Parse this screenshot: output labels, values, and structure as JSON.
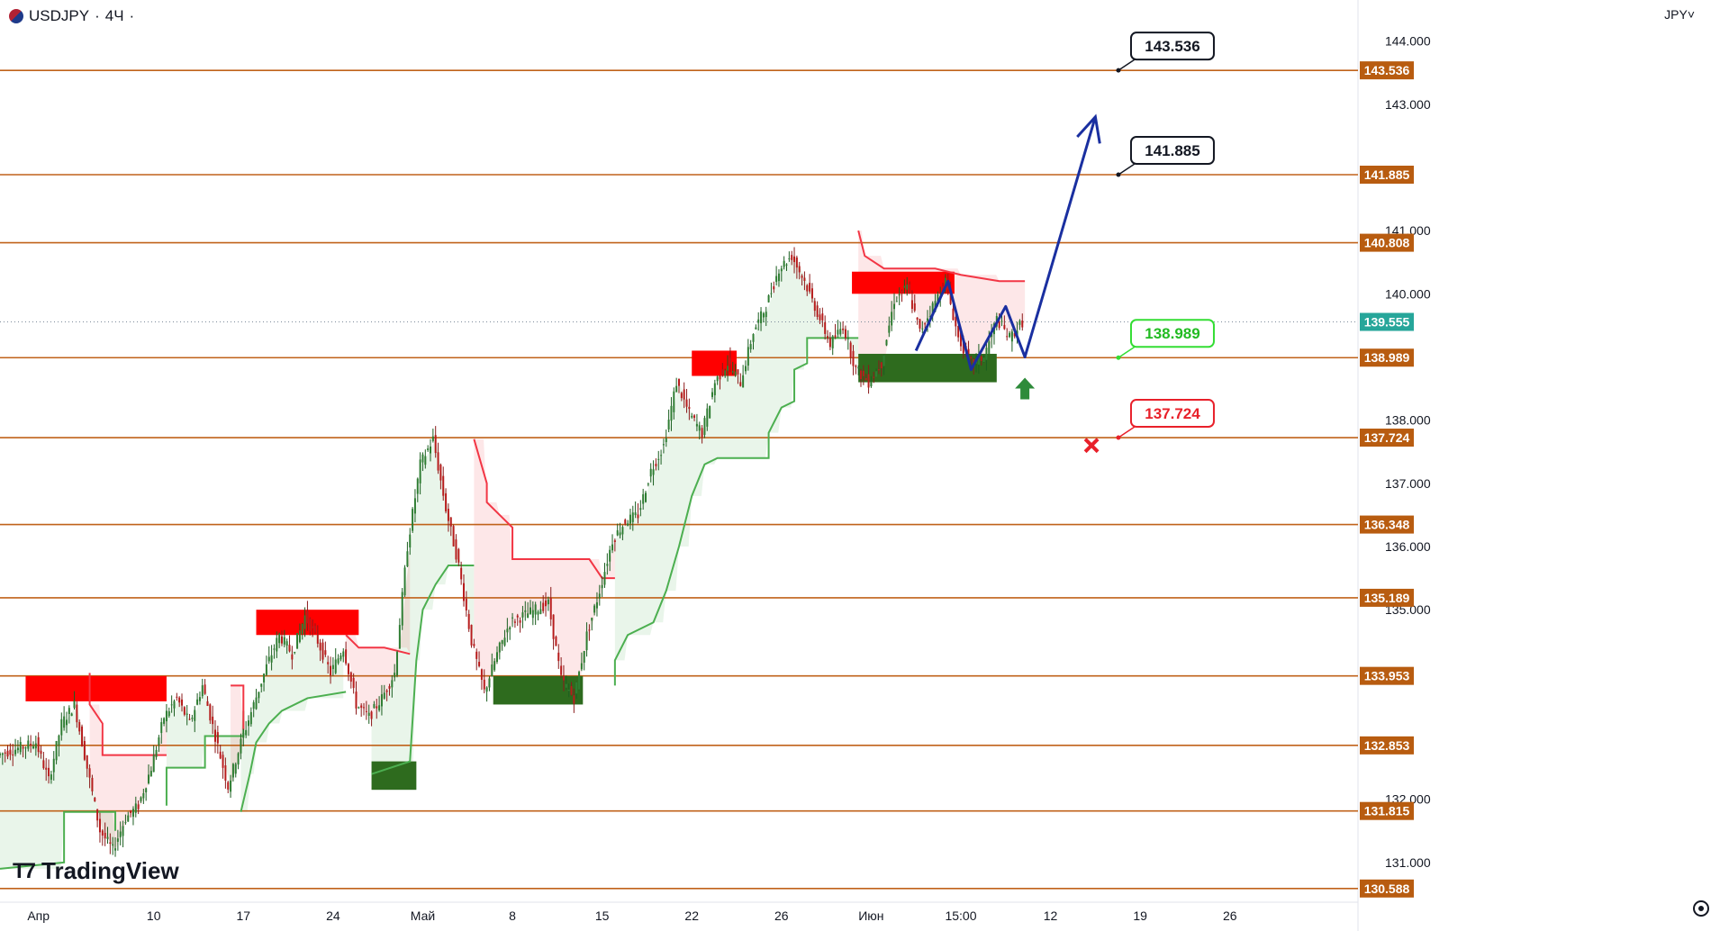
{
  "header": {
    "symbol": "USDJPY",
    "timeframe": "4Ч",
    "separator": "·"
  },
  "axis_currency": "JPY",
  "brand": "TradingView",
  "chart_data": {
    "type": "candlestick",
    "ylim": [
      130.4,
      144.45
    ],
    "y_ticks": [
      "144.000",
      "143.000",
      "141.000",
      "140.000",
      "138.000",
      "137.000",
      "136.000",
      "135.000",
      "132.000",
      "131.000"
    ],
    "y_tick_values": [
      144.0,
      143.0,
      141.0,
      140.0,
      138.0,
      137.0,
      136.0,
      135.0,
      132.0,
      131.0
    ],
    "x_ticks": [
      "Апр",
      "10",
      "17",
      "24",
      "Май",
      "8",
      "15",
      "22",
      "26",
      "Июн",
      "15:00",
      "12",
      "19",
      "26"
    ],
    "x_tick_values": [
      0,
      9,
      16,
      23,
      30,
      37,
      44,
      51,
      58,
      65,
      72,
      79,
      86,
      93
    ],
    "x_range": [
      -3,
      103
    ],
    "levels": [
      {
        "value": 143.536,
        "label": "143.536"
      },
      {
        "value": 141.885,
        "label": "141.885"
      },
      {
        "value": 140.808,
        "label": "140.808"
      },
      {
        "value": 138.989,
        "label": "138.989"
      },
      {
        "value": 137.724,
        "label": "137.724"
      },
      {
        "value": 136.348,
        "label": "136.348"
      },
      {
        "value": 135.189,
        "label": "135.189"
      },
      {
        "value": 133.953,
        "label": "133.953"
      },
      {
        "value": 132.853,
        "label": "132.853"
      },
      {
        "value": 131.815,
        "label": "131.815"
      },
      {
        "value": 130.588,
        "label": "130.588"
      }
    ],
    "current_price": {
      "value": 139.555,
      "label": "139.555"
    },
    "callouts": [
      {
        "label": "143.536",
        "value": 143.536,
        "style": "target"
      },
      {
        "label": "141.885",
        "value": 141.885,
        "style": "target"
      },
      {
        "label": "138.989",
        "value": 138.989,
        "style": "entry"
      },
      {
        "label": "137.724",
        "value": 137.724,
        "style": "stop"
      }
    ],
    "path": [
      [
        -3,
        132.7
      ],
      [
        0,
        132.9
      ],
      [
        1,
        132.3
      ],
      [
        2,
        133.2
      ],
      [
        3,
        133.5
      ],
      [
        4,
        132.5
      ],
      [
        5,
        131.5
      ],
      [
        6,
        131.2
      ],
      [
        7,
        131.7
      ],
      [
        8,
        131.9
      ],
      [
        9,
        132.5
      ],
      [
        10,
        133.3
      ],
      [
        11,
        133.6
      ],
      [
        12,
        133.2
      ],
      [
        13,
        133.8
      ],
      [
        14,
        133.0
      ],
      [
        15,
        132.2
      ],
      [
        16,
        132.9
      ],
      [
        17,
        133.5
      ],
      [
        18,
        134.1
      ],
      [
        19,
        134.6
      ],
      [
        20,
        134.3
      ],
      [
        21,
        134.9
      ],
      [
        22,
        134.5
      ],
      [
        23,
        134.0
      ],
      [
        24,
        134.4
      ],
      [
        25,
        133.5
      ],
      [
        26,
        133.3
      ],
      [
        27,
        133.6
      ],
      [
        28,
        134.0
      ],
      [
        29,
        136.0
      ],
      [
        30,
        137.3
      ],
      [
        31,
        137.7
      ],
      [
        32,
        136.6
      ],
      [
        33,
        135.7
      ],
      [
        34,
        134.5
      ],
      [
        35,
        133.7
      ],
      [
        36,
        134.3
      ],
      [
        37,
        134.8
      ],
      [
        38,
        134.9
      ],
      [
        39,
        135.0
      ],
      [
        40,
        135.1
      ],
      [
        41,
        133.9
      ],
      [
        42,
        133.6
      ],
      [
        43,
        134.6
      ],
      [
        44,
        135.3
      ],
      [
        45,
        136.1
      ],
      [
        46,
        136.4
      ],
      [
        47,
        136.5
      ],
      [
        48,
        137.2
      ],
      [
        49,
        137.6
      ],
      [
        50,
        138.6
      ],
      [
        51,
        138.1
      ],
      [
        52,
        137.8
      ],
      [
        53,
        138.6
      ],
      [
        54,
        138.9
      ],
      [
        55,
        138.6
      ],
      [
        56,
        139.4
      ],
      [
        57,
        139.8
      ],
      [
        58,
        140.4
      ],
      [
        59,
        140.6
      ],
      [
        60,
        140.2
      ],
      [
        61,
        139.7
      ],
      [
        62,
        139.2
      ],
      [
        63,
        139.5
      ],
      [
        64,
        138.8
      ],
      [
        65,
        138.6
      ],
      [
        66,
        138.9
      ],
      [
        67,
        139.9
      ],
      [
        68,
        140.1
      ],
      [
        69,
        139.4
      ],
      [
        70,
        139.8
      ],
      [
        71,
        140.2
      ],
      [
        72,
        139.3
      ],
      [
        73,
        138.9
      ],
      [
        74,
        139.0
      ],
      [
        75,
        139.6
      ],
      [
        76,
        139.3
      ],
      [
        77,
        139.55
      ]
    ],
    "trailing_stop": {
      "green": [
        [
          [
            -3,
            130.9
          ],
          [
            2,
            131.0
          ],
          [
            2,
            131.8
          ],
          [
            6,
            131.8
          ],
          [
            6,
            131.5
          ]
        ],
        [
          [
            10,
            131.9
          ],
          [
            10,
            132.5
          ],
          [
            13,
            132.5
          ],
          [
            13,
            133.0
          ],
          [
            16,
            133.0
          ],
          [
            16,
            133.4
          ]
        ],
        [
          [
            15.8,
            131.8
          ],
          [
            16.5,
            132.4
          ],
          [
            17,
            132.9
          ],
          [
            18,
            133.2
          ],
          [
            19,
            133.4
          ],
          [
            21,
            133.6
          ],
          [
            24,
            133.7
          ]
        ],
        [
          [
            26,
            132.4
          ],
          [
            29,
            132.6
          ],
          [
            29.5,
            134.2
          ],
          [
            30,
            135.0
          ],
          [
            31,
            135.4
          ],
          [
            32,
            135.7
          ],
          [
            34,
            135.7
          ]
        ],
        [
          [
            45,
            133.8
          ],
          [
            45,
            134.2
          ],
          [
            46,
            134.6
          ],
          [
            48,
            134.8
          ],
          [
            49,
            135.3
          ],
          [
            50,
            136.0
          ],
          [
            51,
            136.8
          ],
          [
            52,
            137.3
          ],
          [
            53,
            137.4
          ],
          [
            57,
            137.4
          ],
          [
            57,
            137.8
          ],
          [
            58,
            138.2
          ],
          [
            59,
            138.3
          ],
          [
            59,
            138.8
          ],
          [
            60,
            138.9
          ],
          [
            60,
            139.3
          ],
          [
            64,
            139.3
          ]
        ]
      ],
      "red": [
        [
          [
            4,
            134.0
          ],
          [
            4,
            133.5
          ],
          [
            5,
            133.2
          ],
          [
            5,
            132.7
          ],
          [
            10,
            132.7
          ]
        ],
        [
          [
            15,
            133.8
          ],
          [
            16,
            133.8
          ],
          [
            16,
            133.1
          ]
        ],
        [
          [
            24,
            134.6
          ],
          [
            25,
            134.4
          ],
          [
            27,
            134.4
          ],
          [
            29,
            134.3
          ]
        ],
        [
          [
            34,
            137.7
          ],
          [
            35,
            137.0
          ],
          [
            35,
            136.7
          ],
          [
            36,
            136.5
          ],
          [
            37,
            136.3
          ],
          [
            37,
            135.8
          ],
          [
            43,
            135.8
          ],
          [
            44,
            135.5
          ],
          [
            45,
            135.5
          ]
        ],
        [
          [
            64,
            141.0
          ],
          [
            64.5,
            140.6
          ],
          [
            66,
            140.4
          ],
          [
            70,
            140.4
          ],
          [
            72,
            140.3
          ],
          [
            75,
            140.2
          ],
          [
            77,
            140.2
          ]
        ]
      ]
    },
    "zones": [
      {
        "type": "resistance",
        "x0": -1,
        "x1": 10,
        "y0": 133.55,
        "y1": 133.95
      },
      {
        "type": "resistance",
        "x0": 17,
        "x1": 25,
        "y0": 134.6,
        "y1": 135.0
      },
      {
        "type": "support",
        "x0": 26,
        "x1": 29.5,
        "y0": 132.15,
        "y1": 132.6
      },
      {
        "type": "support",
        "x0": 35.5,
        "x1": 42.5,
        "y0": 133.5,
        "y1": 133.95
      },
      {
        "type": "resistance",
        "x0": 51,
        "x1": 54.5,
        "y0": 138.7,
        "y1": 139.1
      },
      {
        "type": "resistance",
        "x0": 63.5,
        "x1": 71.5,
        "y0": 140.0,
        "y1": 140.35
      },
      {
        "type": "support",
        "x0": 64,
        "x1": 74.8,
        "y0": 138.6,
        "y1": 139.05
      }
    ],
    "projection": [
      [
        68.5,
        139.1
      ],
      [
        71,
        140.2
      ],
      [
        72.8,
        138.8
      ],
      [
        75.5,
        139.8
      ],
      [
        77,
        139.0
      ],
      [
        82.5,
        142.8
      ]
    ],
    "buy_marker": {
      "x": 77,
      "y": 138.5
    },
    "stop_marker": {
      "x": 82.2,
      "y": 137.6
    }
  }
}
